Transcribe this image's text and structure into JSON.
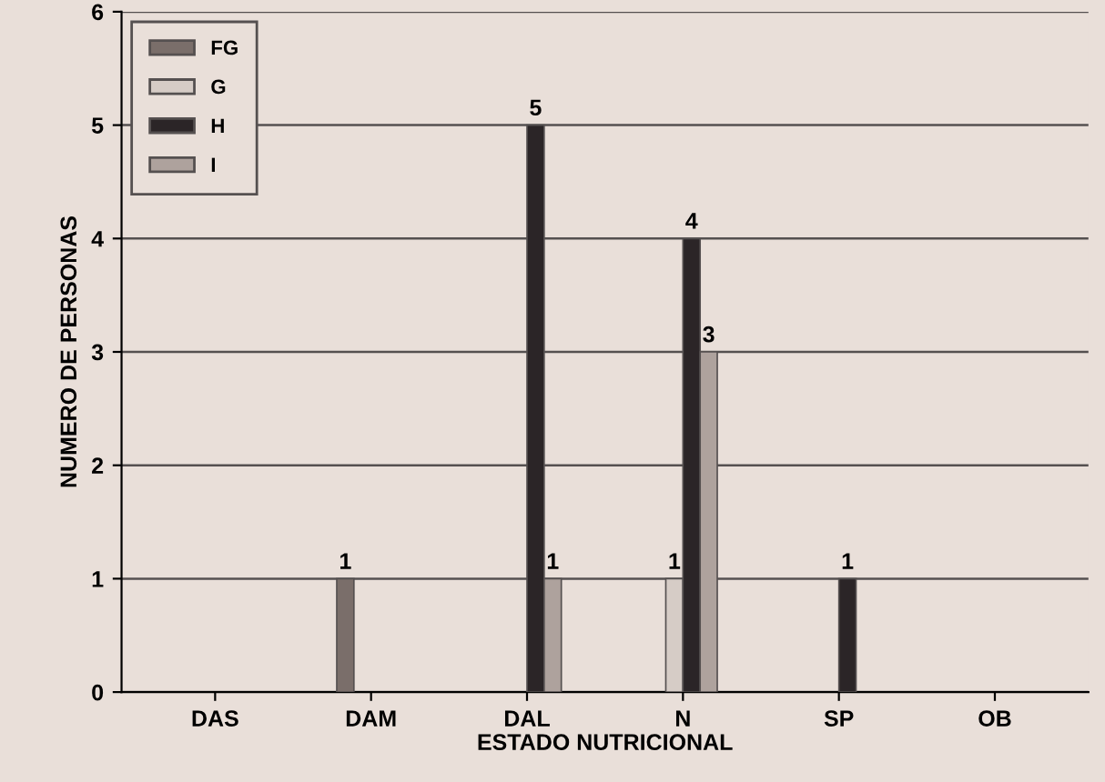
{
  "chart_data": {
    "type": "bar",
    "xlabel": "ESTADO NUTRICIONAL",
    "ylabel": "NUMERO DE PERSONAS",
    "categories": [
      "DAS",
      "DAM",
      "DAL",
      "N",
      "SP",
      "OB"
    ],
    "series": [
      {
        "name": "FG",
        "color": "#7a6e6a",
        "values": [
          null,
          1,
          null,
          null,
          null,
          null
        ],
        "value_labels": [
          null,
          "1",
          null,
          null,
          null,
          null
        ]
      },
      {
        "name": "G",
        "color": "#d6ccc6",
        "values": [
          null,
          null,
          null,
          1,
          null,
          null
        ],
        "value_labels": [
          null,
          null,
          null,
          "1",
          null,
          null
        ]
      },
      {
        "name": "H",
        "color": "#2b2527",
        "values": [
          null,
          null,
          5,
          4,
          1,
          null
        ],
        "value_labels": [
          null,
          null,
          "5",
          "4",
          "1",
          null
        ]
      },
      {
        "name": "I",
        "color": "#aea29d",
        "values": [
          null,
          null,
          1,
          3,
          null,
          null
        ],
        "value_labels": [
          null,
          null,
          "1",
          "3",
          null,
          null
        ]
      }
    ],
    "ylim": [
      0,
      6
    ],
    "yticks": [
      0,
      1,
      2,
      3,
      4,
      5,
      6
    ],
    "grid": "y",
    "legend": "top left"
  }
}
